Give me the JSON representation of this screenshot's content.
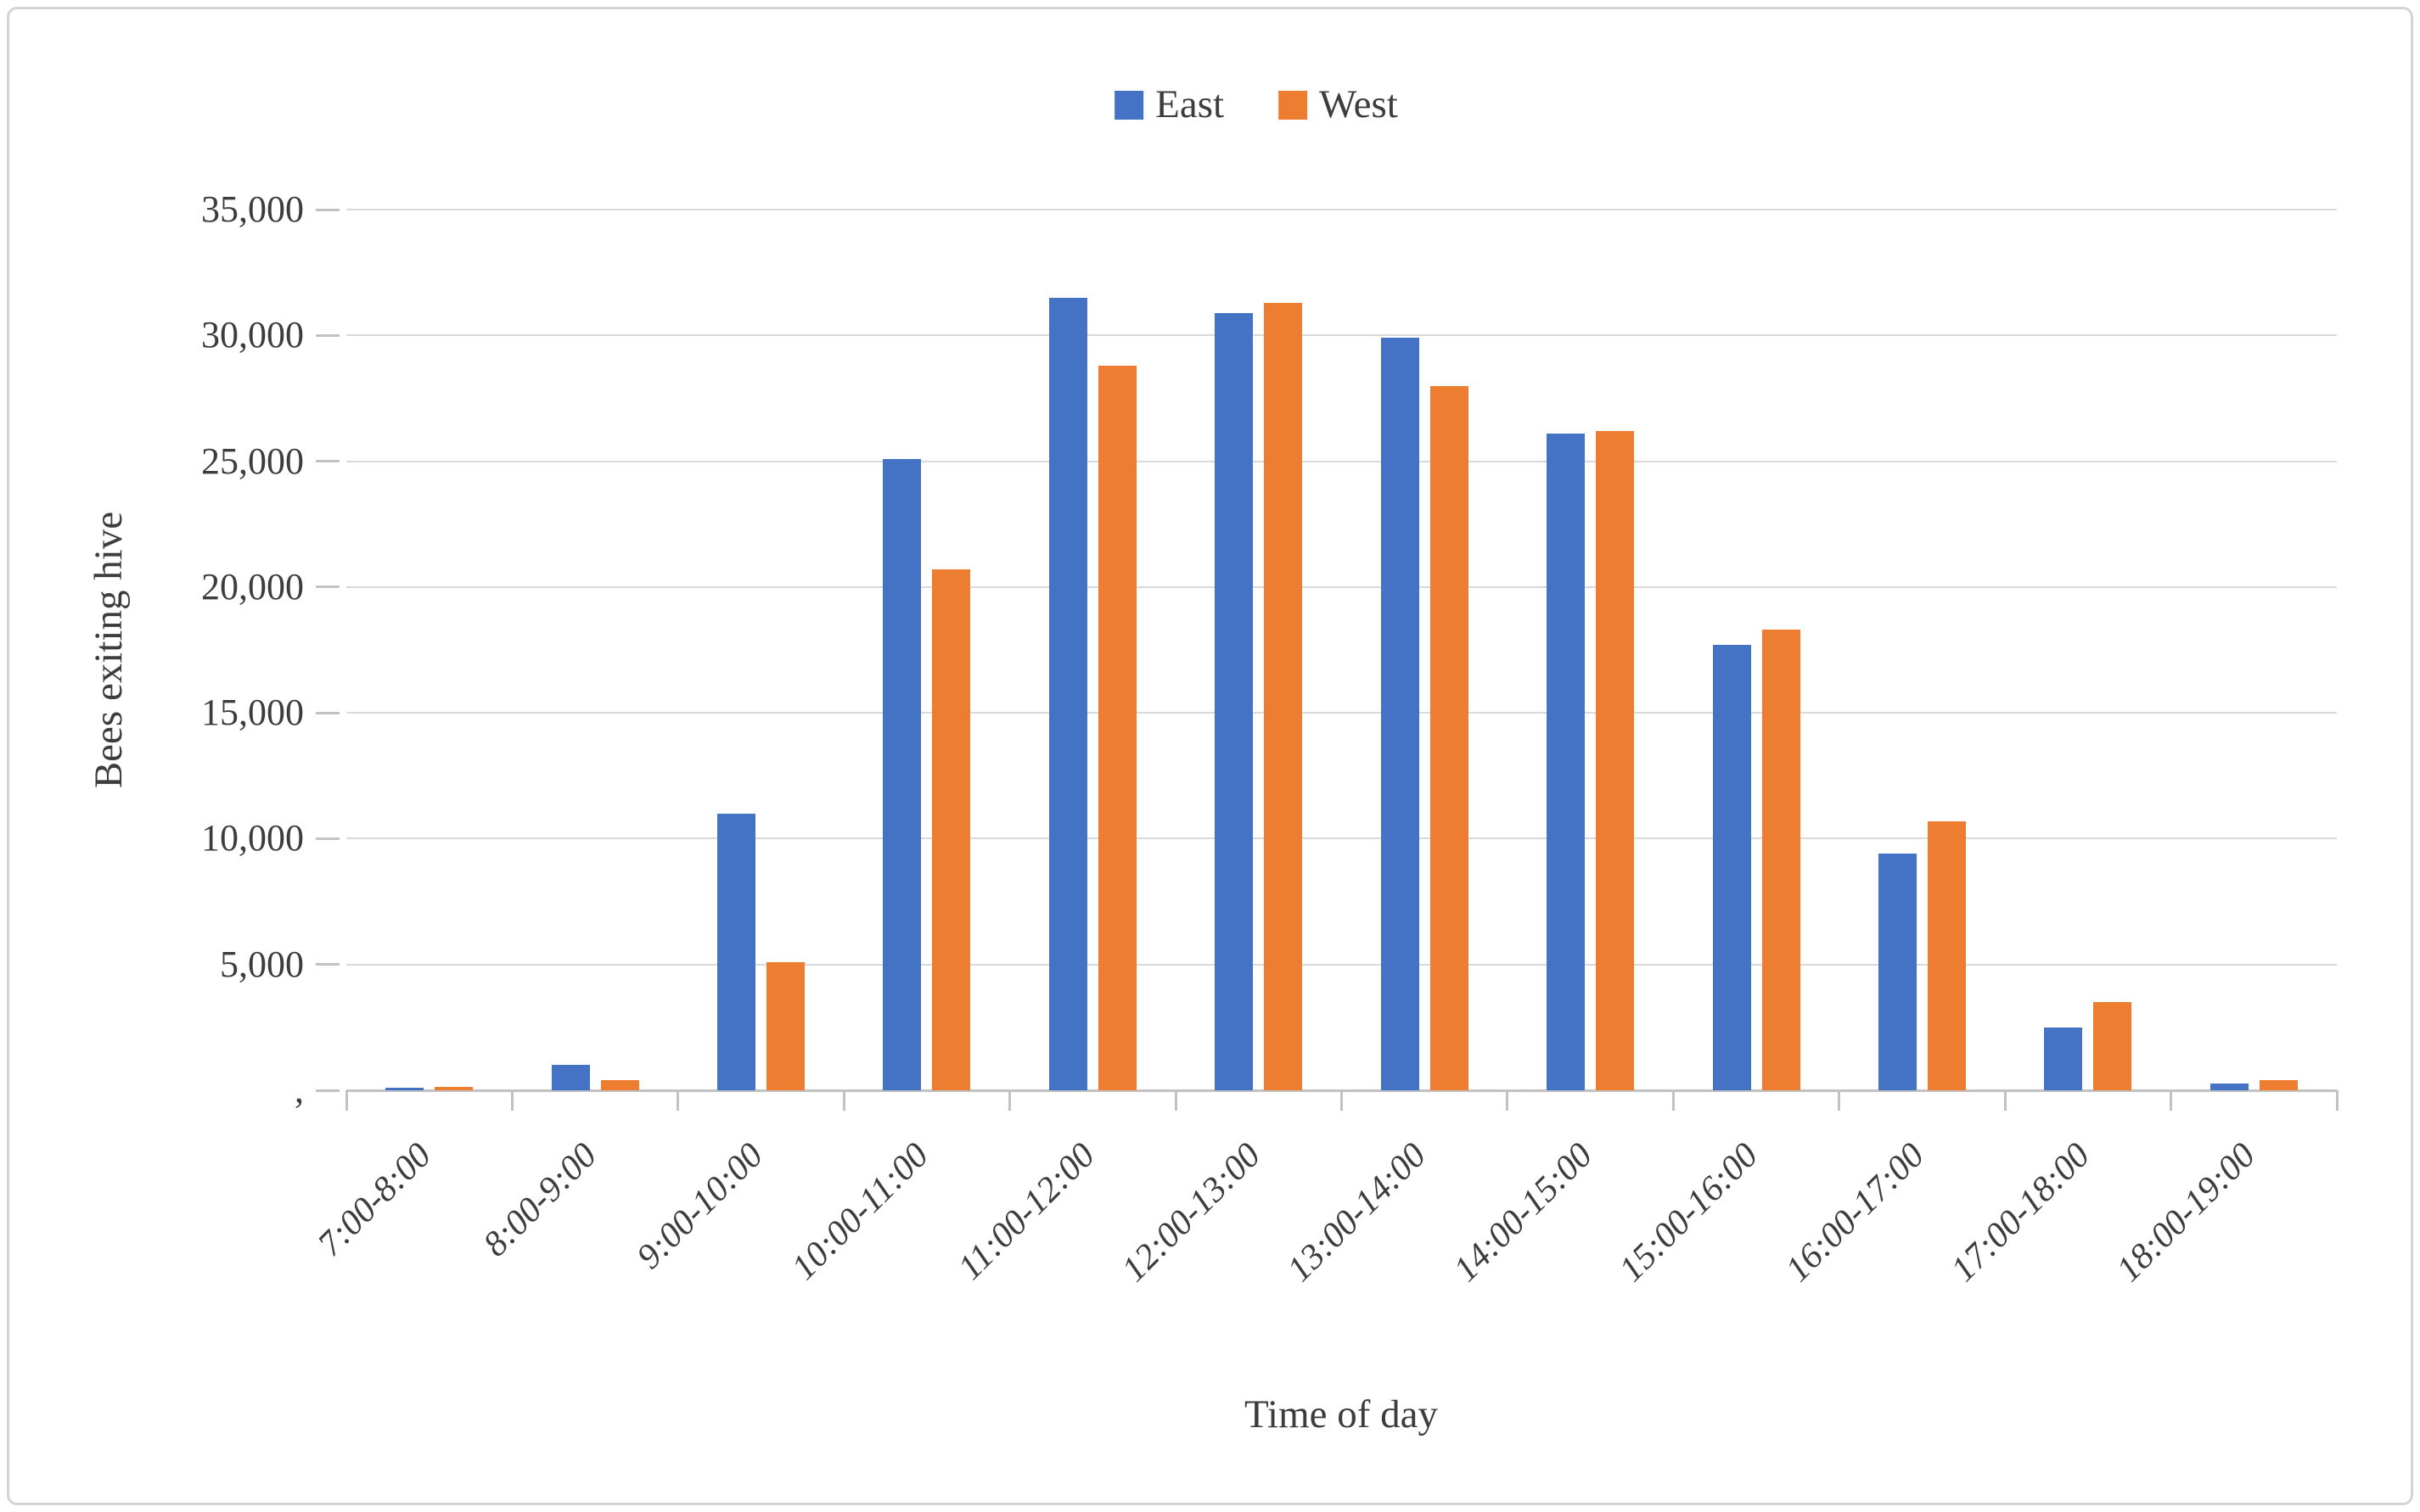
{
  "chart_data": {
    "type": "bar",
    "title": "",
    "categories": [
      "7:00-8:00",
      "8:00-9:00",
      "9:00-10:00",
      "10:00-11:00",
      "11:00-12:00",
      "12:00-13:00",
      "13:00-14:00",
      "14:00-15:00",
      "15:00-16:00",
      "16:00-17:00",
      "17:00-18:00",
      "18:00-19:00"
    ],
    "series": [
      {
        "name": "East",
        "color": "#4472C4",
        "values": [
          100,
          1000,
          11000,
          25100,
          31500,
          30900,
          29900,
          26100,
          17700,
          9400,
          2500,
          280
        ]
      },
      {
        "name": "West",
        "color": "#ED7D31",
        "values": [
          150,
          400,
          5100,
          20700,
          28800,
          31300,
          28000,
          26200,
          18300,
          10700,
          3500,
          400
        ]
      }
    ],
    "xlabel": "Time of day",
    "ylabel": "Bees exiting hive",
    "ylim": [
      0,
      35000
    ],
    "ytick_step": 5000,
    "ytick_labels": [
      ",",
      "5,000",
      "10,000",
      "15,000",
      "20,000",
      "25,000",
      "30,000",
      "35,000"
    ],
    "grid": true,
    "legend_position": "top-center"
  },
  "styles": {
    "gridline_color": "#D9D9D9",
    "axis_line_color": "#C2C2C2",
    "text_color": "#3D3D3D",
    "frame_border_color": "#D4D4D4",
    "background": "#FFFFFF"
  }
}
